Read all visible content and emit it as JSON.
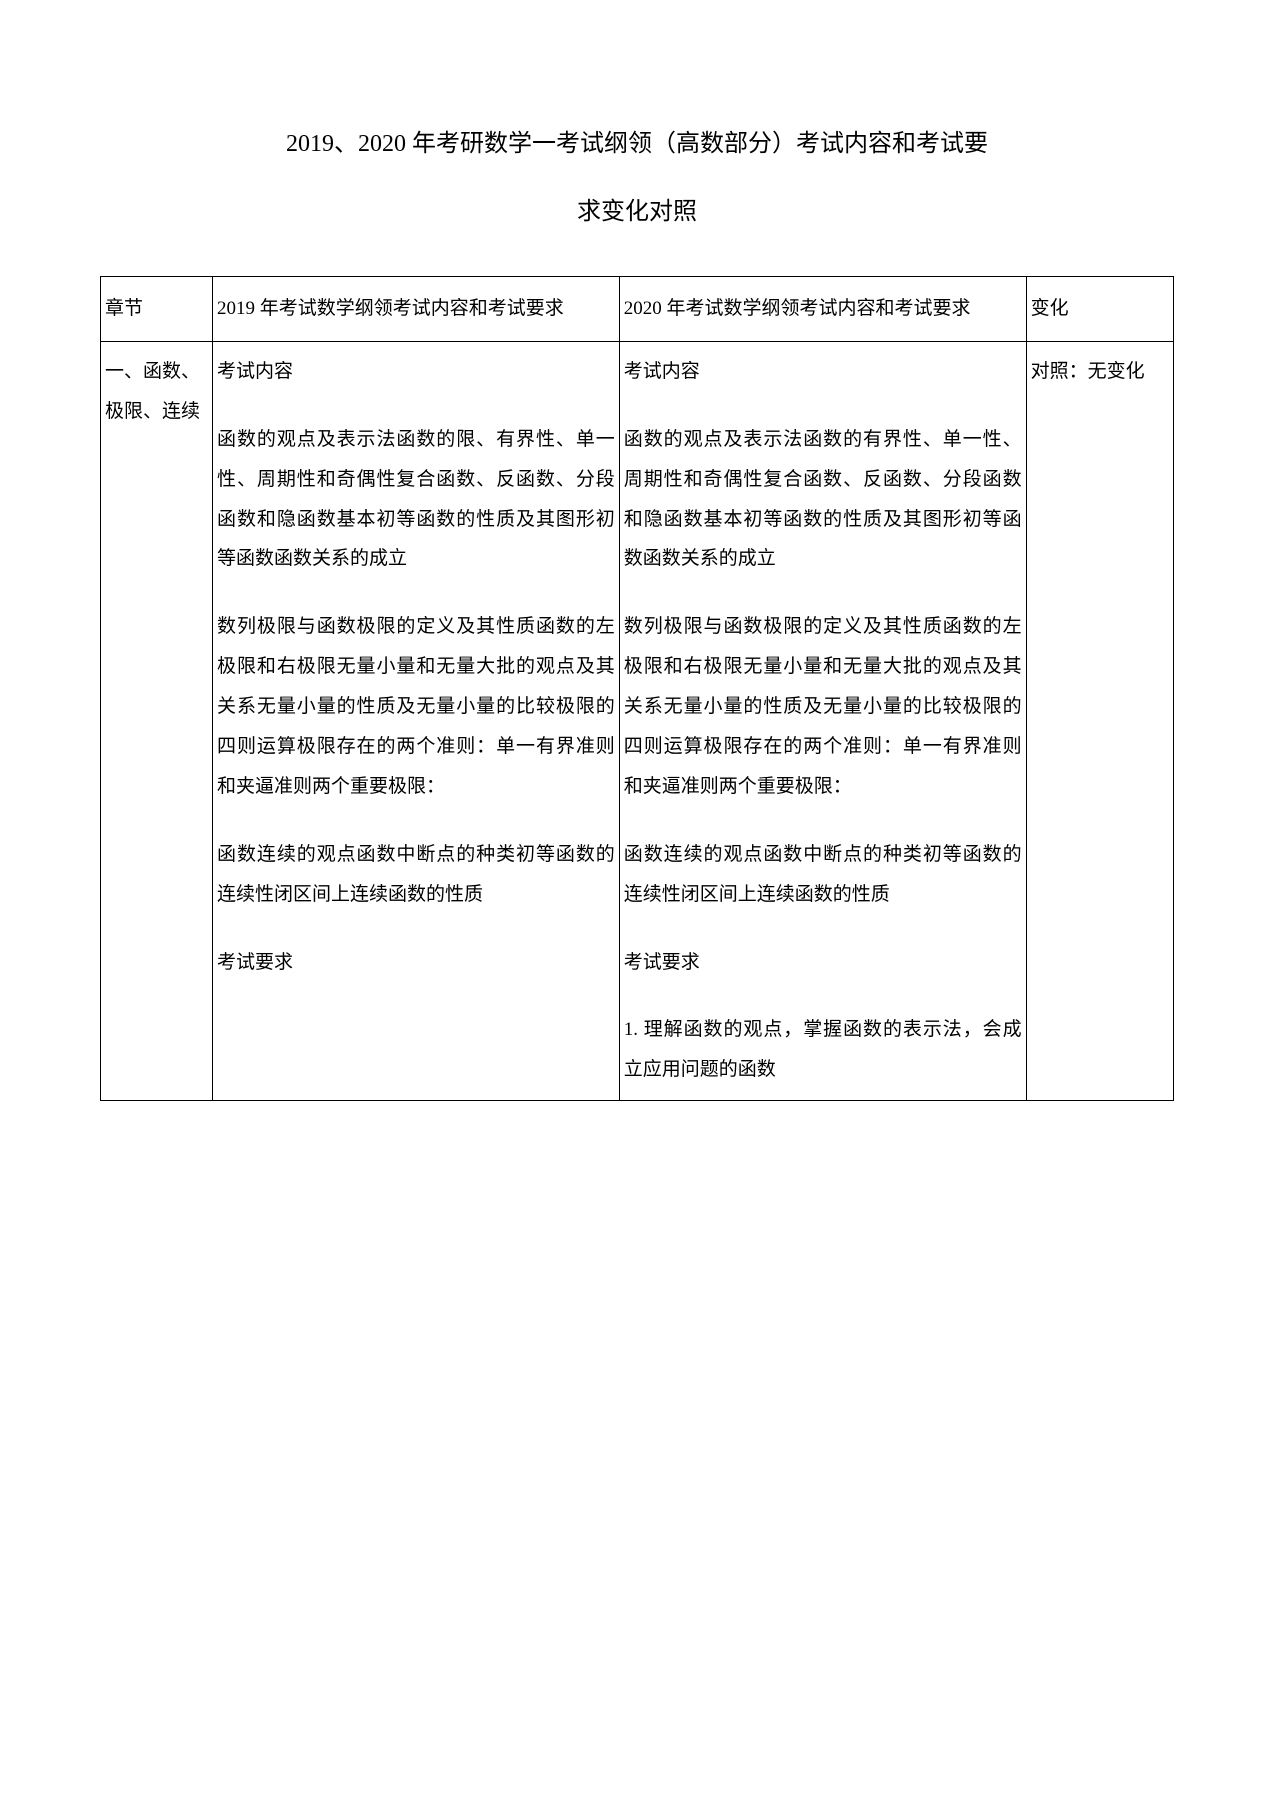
{
  "title": {
    "line1": "2019、2020 年考研数学一考试纲领（高数部分）考试内容和考试要",
    "line2": "求变化对照"
  },
  "table": {
    "header": {
      "col1": "章节",
      "col2": "2019 年考试数学纲领考试内容和考试要求",
      "col3": "2020 年考试数学纲领考试内容和考试要求",
      "col4": "变化"
    },
    "row1": {
      "col1": "一、函数、极限、连续",
      "col2": {
        "heading1": "考试内容",
        "para1": "函数的观点及表示法函数的限、有界性、单一性、周期性和奇偶性复合函数、反函数、分段函数和隐函数基本初等函数的性质及其图形初等函数函数关系的成立",
        "para2": "数列极限与函数极限的定义及其性质函数的左极限和右极限无量小量和无量大批的观点及其关系无量小量的性质及无量小量的比较极限的四则运算极限存在的两个准则：单一有界准则和夹逼准则两个重要极限：",
        "para3": "函数连续的观点函数中断点的种类初等函数的连续性闭区间上连续函数的性质",
        "heading2": "考试要求"
      },
      "col3": {
        "heading1": "考试内容",
        "para1": "函数的观点及表示法函数的有界性、单一性、周期性和奇偶性复合函数、反函数、分段函数和隐函数基本初等函数的性质及其图形初等函数函数关系的成立",
        "para2": "数列极限与函数极限的定义及其性质函数的左极限和右极限无量小量和无量大批的观点及其关系无量小量的性质及无量小量的比较极限的四则运算极限存在的两个准则：单一有界准则和夹逼准则两个重要极限：",
        "para3": "函数连续的观点函数中断点的种类初等函数的连续性闭区间上连续函数的性质",
        "heading2": "考试要求",
        "para4": "1. 理解函数的观点，掌握函数的表示法，会成立应用问题的函数"
      },
      "col4_label": "对照：",
      "col4_value": "无变化"
    }
  },
  "colors": {
    "background": "#ffffff",
    "text": "#000000",
    "border": "#000000"
  },
  "typography": {
    "title_fontsize": 24,
    "body_fontsize": 19,
    "font_family": "SimSun"
  }
}
